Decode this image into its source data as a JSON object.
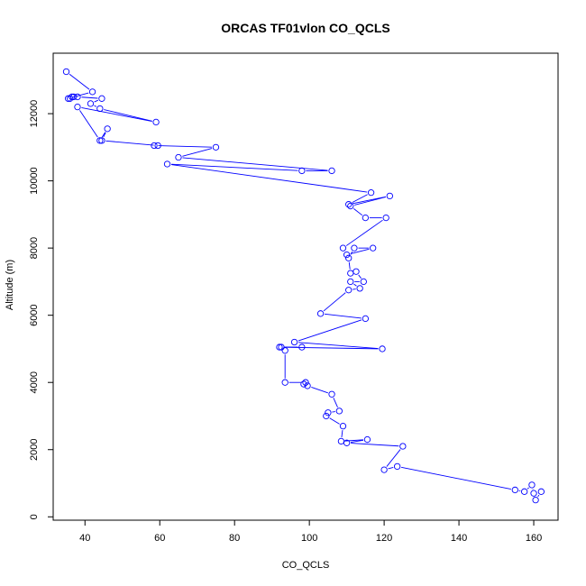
{
  "chart_data": {
    "type": "scatter",
    "title": "ORCAS TF01vlon CO_QCLS",
    "xlabel": "CO_QCLS",
    "ylabel": "Altitude (m)",
    "xlim": [
      31.5,
      166.5
    ],
    "ylim": [
      -100,
      13800
    ],
    "xticks": [
      "40",
      "60",
      "80",
      "100",
      "120",
      "140",
      "160"
    ],
    "xtick_values": [
      40,
      60,
      80,
      100,
      120,
      140,
      160
    ],
    "yticks": [
      "0",
      "2000",
      "4000",
      "6000",
      "8000",
      "10000",
      "12000"
    ],
    "ytick_values": [
      0,
      2000,
      4000,
      6000,
      8000,
      10000,
      12000
    ],
    "grid": false,
    "legend": "none",
    "series_color": "#0000ff",
    "series": [
      {
        "x": [
          35,
          42,
          35.5,
          36,
          36.5,
          37,
          38,
          44.5,
          41.5,
          44,
          59,
          38,
          44,
          46,
          44.5,
          59.5,
          58.5,
          75,
          65,
          106,
          98,
          62,
          116.5,
          110.5,
          121.5,
          111,
          115,
          120.5,
          109,
          110,
          117,
          112,
          110.5,
          111,
          112.5,
          114.5,
          111,
          113.5,
          110.5,
          103,
          115,
          96,
          119.5,
          92,
          98,
          92.5,
          93.5,
          93.5,
          99,
          98.5,
          99.5,
          106,
          108,
          105,
          104.5,
          109,
          108.5,
          115.5,
          110,
          125,
          120,
          123.5,
          155,
          157.5,
          159.5,
          160,
          162,
          160.5
        ],
        "y": [
          13250,
          12650,
          12450,
          12450,
          12500,
          12500,
          12500,
          12450,
          12300,
          12150,
          11750,
          12200,
          11200,
          11550,
          11200,
          11050,
          11050,
          11000,
          10700,
          10300,
          10300,
          10500,
          9650,
          9300,
          9550,
          9250,
          8900,
          8900,
          8000,
          7800,
          8000,
          8000,
          7700,
          7250,
          7300,
          7000,
          7000,
          6800,
          6750,
          6050,
          5900,
          5200,
          5000,
          5050,
          5050,
          5050,
          4950,
          4000,
          4000,
          3950,
          3900,
          3650,
          3150,
          3100,
          3000,
          2700,
          2250,
          2300,
          2200,
          2100,
          1400,
          1500,
          800,
          750,
          950,
          700,
          750,
          500
        ]
      }
    ]
  }
}
